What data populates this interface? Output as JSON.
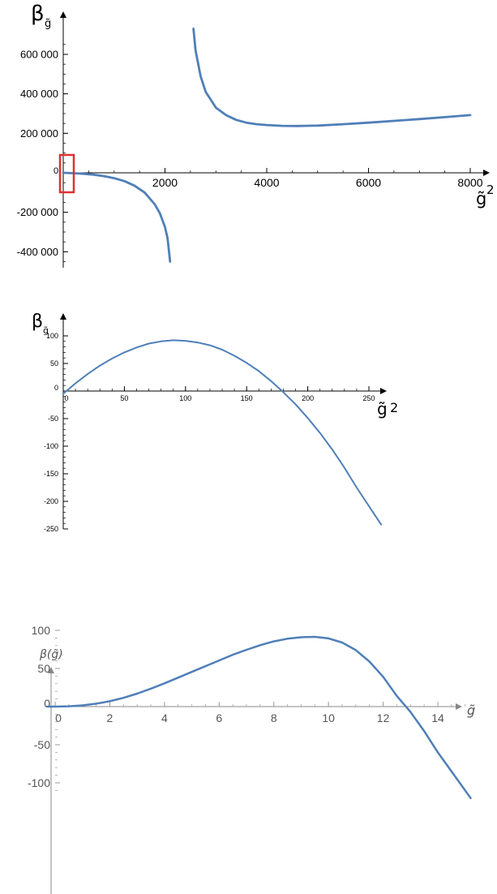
{
  "chart_data": [
    {
      "type": "line",
      "ylabel": "β",
      "ylabel_sub": "g̃",
      "xlabel": "g̃",
      "xlabel_sup": "2",
      "xlim": [
        0,
        8000
      ],
      "ylim": [
        -480000,
        750000
      ],
      "x_ticks": [
        "2000",
        "4000",
        "6000",
        "8000"
      ],
      "y_ticks": [
        "600 000",
        "400 000",
        "200 000",
        "-200 000",
        "-400 000"
      ],
      "origin_label": "0",
      "highlight_box_color": "#e03030",
      "line_color": "#4f7fb8",
      "series": [
        {
          "x": [
            0,
            200,
            400,
            600,
            800,
            1000,
            1200,
            1400,
            1600,
            1800,
            1900,
            2000,
            2050,
            2100
          ],
          "y": [
            0,
            -2000,
            -5000,
            -10000,
            -17000,
            -27000,
            -42000,
            -65000,
            -100000,
            -160000,
            -205000,
            -275000,
            -330000,
            -450000
          ]
        },
        {
          "x": [
            2560,
            2600,
            2700,
            2800,
            3000,
            3200,
            3400,
            3600,
            3800,
            4000,
            4300,
            4600,
            5000,
            5500,
            6000,
            6500,
            7000,
            7500,
            8000
          ],
          "y": [
            730000,
            620000,
            490000,
            410000,
            330000,
            292000,
            268000,
            254000,
            246000,
            242000,
            238000,
            237000,
            239000,
            246000,
            254000,
            263000,
            272000,
            282000,
            292000
          ]
        }
      ]
    },
    {
      "type": "line",
      "ylabel": "β",
      "ylabel_sub": "g̃",
      "xlabel": "g̃",
      "xlabel_sup": "2",
      "xlim": [
        0,
        250
      ],
      "ylim": [
        -250,
        100
      ],
      "x_ticks": [
        "0",
        "50",
        "100",
        "150",
        "200",
        "250"
      ],
      "y_ticks": [
        "100",
        "50",
        "0",
        "-50",
        "-100",
        "-150",
        "-200",
        "-250"
      ],
      "line_color": "#4f7fb8",
      "series": [
        {
          "x": [
            0,
            10,
            20,
            30,
            40,
            50,
            60,
            70,
            80,
            90,
            100,
            110,
            120,
            130,
            140,
            150,
            160,
            170,
            180,
            190,
            200,
            210,
            220,
            230,
            240,
            260
          ],
          "y": [
            -5,
            14,
            31,
            46,
            59,
            70,
            79,
            86,
            90,
            92,
            91,
            88,
            83,
            75,
            64,
            51,
            36,
            18,
            -2,
            -24,
            -49,
            -76,
            -106,
            -139,
            -175,
            -242
          ]
        }
      ]
    },
    {
      "type": "line",
      "ylabel": "β(g̃)",
      "xlabel": "g̃",
      "xlim": [
        0,
        15
      ],
      "ylim": [
        -110,
        100
      ],
      "x_ticks": [
        "0",
        "2",
        "4",
        "6",
        "8",
        "10",
        "12",
        "14"
      ],
      "y_ticks": [
        "100",
        "50",
        "0",
        "-50",
        "-100"
      ],
      "line_color": "#4f7fb8",
      "series": [
        {
          "x": [
            -0.3,
            0,
            0.5,
            1,
            1.5,
            2,
            2.5,
            3,
            3.5,
            4,
            4.5,
            5,
            5.5,
            6,
            6.5,
            7,
            7.5,
            8,
            8.5,
            9,
            9.5,
            10,
            10.5,
            11,
            11.5,
            12,
            12.5,
            13,
            13.5,
            14,
            14.5,
            15.2
          ],
          "y": [
            0,
            0,
            0.4,
            1.6,
            3.8,
            7,
            11.5,
            17,
            23.5,
            30.5,
            38,
            45.5,
            53,
            60.5,
            68,
            74.5,
            80.5,
            85.5,
            89,
            91,
            91.5,
            89.5,
            84,
            74,
            59,
            39,
            14,
            -7,
            -32,
            -60,
            -85,
            -120
          ]
        }
      ]
    }
  ]
}
